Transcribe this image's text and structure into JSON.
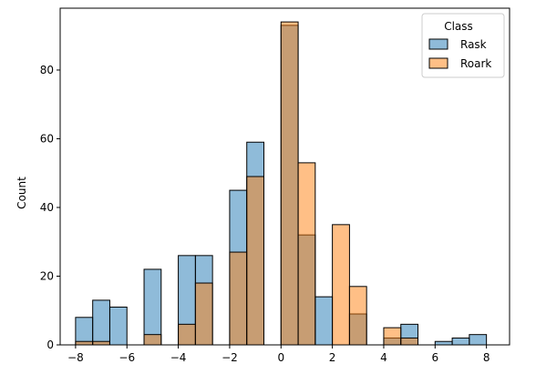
{
  "chart_data": {
    "type": "bar",
    "title": "",
    "xlabel": "",
    "ylabel": "Count",
    "xlim": [
      -8.6,
      8.9
    ],
    "ylim": [
      0,
      98
    ],
    "xticks": [
      -8,
      -6,
      -4,
      -2,
      0,
      2,
      4,
      6,
      8
    ],
    "yticks": [
      0,
      20,
      40,
      60,
      80
    ],
    "bin_width": 0.667,
    "bin_edges": [
      -8.0,
      -7.333,
      -6.667,
      -6.0,
      -5.333,
      -4.667,
      -4.0,
      -3.333,
      -2.667,
      -2.0,
      -1.333,
      -0.667,
      0.0,
      0.667,
      1.333,
      2.0,
      2.667,
      3.333,
      4.0,
      4.667,
      5.333,
      6.0,
      6.667,
      7.333,
      8.0
    ],
    "grid": false,
    "legend": {
      "title": "Class",
      "placement": "top-right"
    },
    "series": [
      {
        "name": "Rask",
        "color": "#1f77b4",
        "values": [
          8,
          13,
          11,
          0,
          22,
          0,
          26,
          26,
          0,
          45,
          59,
          0,
          93,
          32,
          14,
          0,
          9,
          0,
          2,
          6,
          0,
          1,
          2,
          3
        ]
      },
      {
        "name": "Roark",
        "color": "#ff7f0e",
        "values": [
          1,
          1,
          0,
          0,
          3,
          0,
          6,
          18,
          0,
          27,
          49,
          0,
          94,
          53,
          0,
          35,
          17,
          0,
          5,
          2,
          0,
          0,
          0,
          0
        ]
      }
    ]
  }
}
